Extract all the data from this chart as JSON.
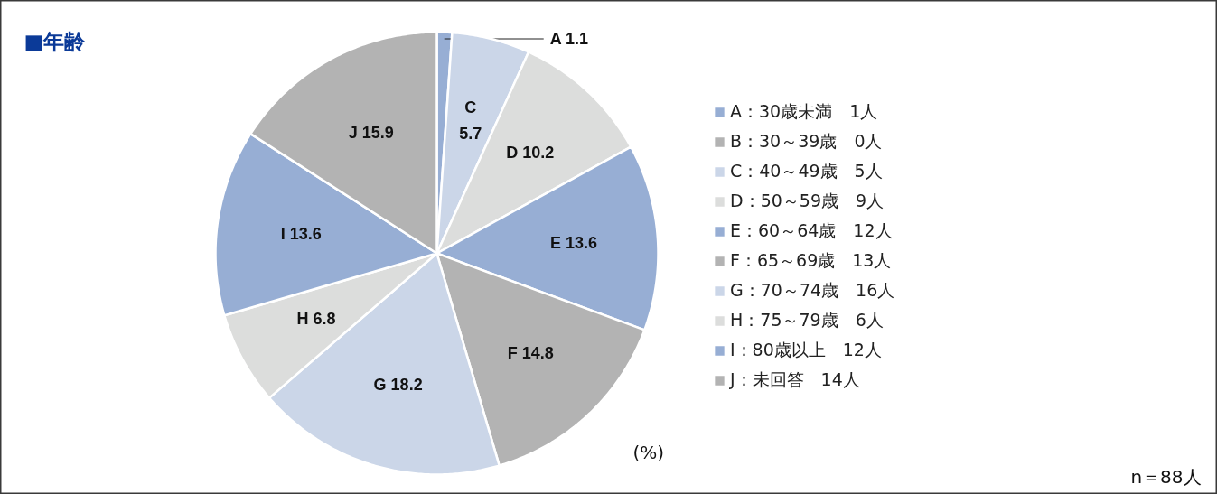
{
  "chart_data": {
    "type": "pie",
    "title": "■年齢",
    "categories": [
      "A：30歳未満　1人",
      "B：30～39歳　0人",
      "C：40～49歳　5人",
      "D：50～59歳　9人",
      "E：60～64歳　12人",
      "F：65～69歳　13人",
      "G：70～74歳　16人",
      "H：75～79歳　6人",
      "I：80歳以上　12人",
      "J：未回答　14人"
    ],
    "values": [
      1.1,
      0,
      5.7,
      10.2,
      13.6,
      14.8,
      18.2,
      6.8,
      13.6,
      15.9
    ],
    "colors": [
      "#97aed4",
      "#b3b3b3",
      "#cbd6e8",
      "#dcdddc",
      "#97aed4",
      "#b3b3b3",
      "#cbd6e8",
      "#dcdddc",
      "#97aed4",
      "#b3b3b3"
    ],
    "value_labels": [
      "A 1.1",
      null,
      "C\n5.7",
      "D 10.2",
      "E 13.6",
      "F 14.8",
      "G 18.2",
      "H 6.8",
      "I 13.6",
      "J 15.9"
    ],
    "legend": "right",
    "annotations": [
      "(%)",
      "n＝88人"
    ]
  }
}
